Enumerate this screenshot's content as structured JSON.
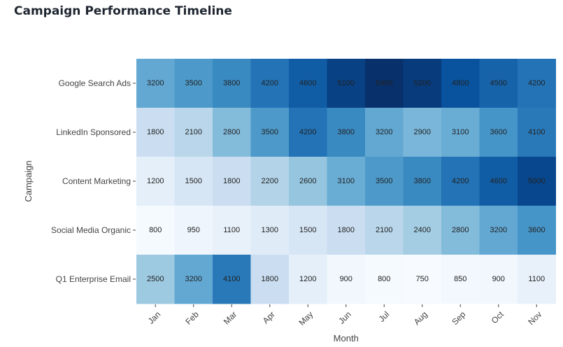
{
  "page": {
    "title": "Campaign Performance Timeline"
  },
  "chart_data": {
    "type": "heatmap",
    "title": "Campaign Performance Timeline",
    "xlabel": "Month",
    "ylabel": "Campaign",
    "x": [
      "Jan",
      "Feb",
      "Mar",
      "Apr",
      "May",
      "Jun",
      "Jul",
      "Aug",
      "Sep",
      "Oct",
      "Nov"
    ],
    "y": [
      "Google Search Ads",
      "LinkedIn Sponsored",
      "Content Marketing",
      "Social Media Organic",
      "Q1 Enterprise Email"
    ],
    "z": [
      [
        3200,
        3500,
        3800,
        4200,
        4600,
        5100,
        5400,
        5200,
        4800,
        4500,
        4200
      ],
      [
        1800,
        2100,
        2800,
        3500,
        4200,
        3800,
        3200,
        2900,
        3100,
        3600,
        4100
      ],
      [
        1200,
        1500,
        1800,
        2200,
        2600,
        3100,
        3500,
        3800,
        4200,
        4600,
        5000
      ],
      [
        800,
        950,
        1100,
        1300,
        1500,
        1800,
        2100,
        2400,
        2800,
        3200,
        3600
      ],
      [
        2500,
        3200,
        4100,
        1800,
        1200,
        900,
        800,
        750,
        850,
        900,
        1100
      ]
    ],
    "colorscale": "Blues",
    "zmin": 750,
    "zmax": 5400,
    "grid": false,
    "legend": "none"
  }
}
